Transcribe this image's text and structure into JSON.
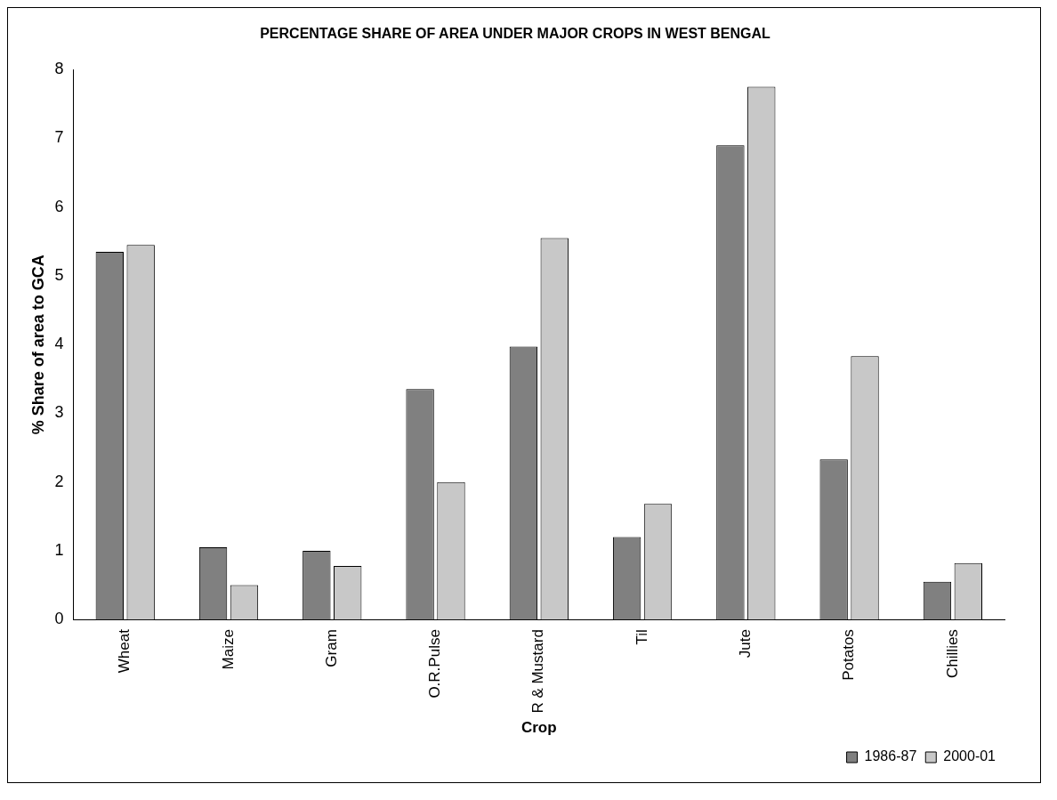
{
  "chart_data": {
    "type": "bar",
    "title": "PERCENTAGE SHARE OF AREA UNDER MAJOR CROPS IN WEST BENGAL",
    "xlabel": "Crop",
    "ylabel": "% Share of area to GCA",
    "categories": [
      "Wheat",
      "Maize",
      "Gram",
      "O.R.Pulse",
      "R & Mustard",
      "Til",
      "Jute",
      "Potatos",
      "Chillies"
    ],
    "series": [
      {
        "name": "1986-87",
        "color": "#808080",
        "values": [
          5.35,
          1.05,
          1.0,
          3.35,
          3.97,
          1.2,
          6.9,
          2.33,
          0.55
        ]
      },
      {
        "name": "2000-01",
        "color": "#c8c8c8",
        "values": [
          5.45,
          0.5,
          0.78,
          2.0,
          5.55,
          1.68,
          7.75,
          3.83,
          0.82
        ]
      }
    ],
    "ylim": [
      0,
      8
    ],
    "yticks": [
      0,
      1,
      2,
      3,
      4,
      5,
      6,
      7,
      8
    ],
    "grid": false,
    "legend": "bottom right"
  }
}
